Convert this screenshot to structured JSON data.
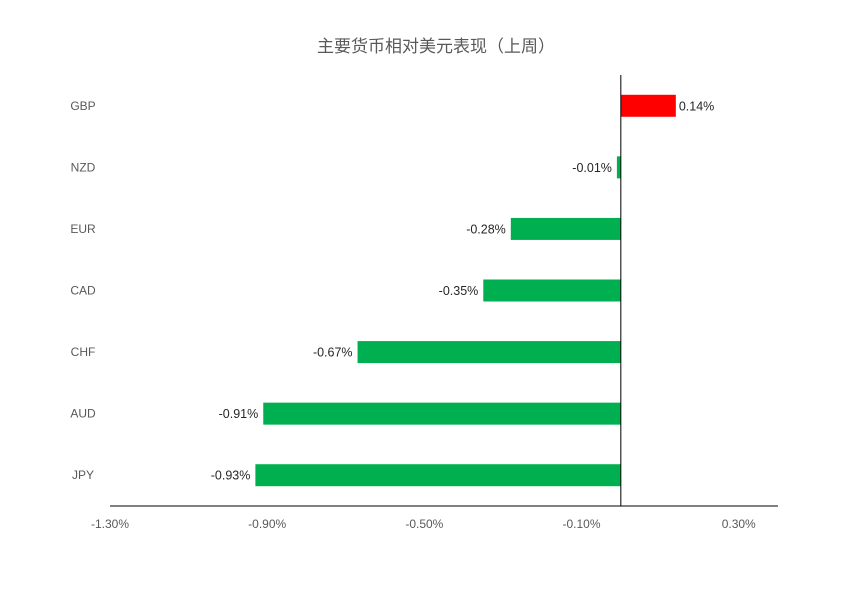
{
  "chart_data": {
    "type": "bar",
    "orientation": "horizontal",
    "title": "主要货币相对美元表现（上周）",
    "categories": [
      "GBP",
      "NZD",
      "EUR",
      "CAD",
      "CHF",
      "AUD",
      "JPY"
    ],
    "values": [
      0.14,
      -0.01,
      -0.28,
      -0.35,
      -0.67,
      -0.91,
      -0.93
    ],
    "value_labels": [
      "0.14%",
      "-0.01%",
      "-0.28%",
      "-0.35%",
      "-0.67%",
      "-0.91%",
      "-0.93%"
    ],
    "xlim": [
      -1.3,
      0.4
    ],
    "x_ticks": [
      -1.3,
      -0.9,
      -0.5,
      -0.1,
      0.3
    ],
    "x_tick_labels": [
      "-1.30%",
      "-0.90%",
      "-0.50%",
      "-0.10%",
      "0.30%"
    ],
    "xlabel": "",
    "ylabel": "",
    "grid": false,
    "legend": "none",
    "colors": {
      "positive": "#ff0000",
      "negative": "#00b050",
      "axis": "#000000"
    }
  }
}
